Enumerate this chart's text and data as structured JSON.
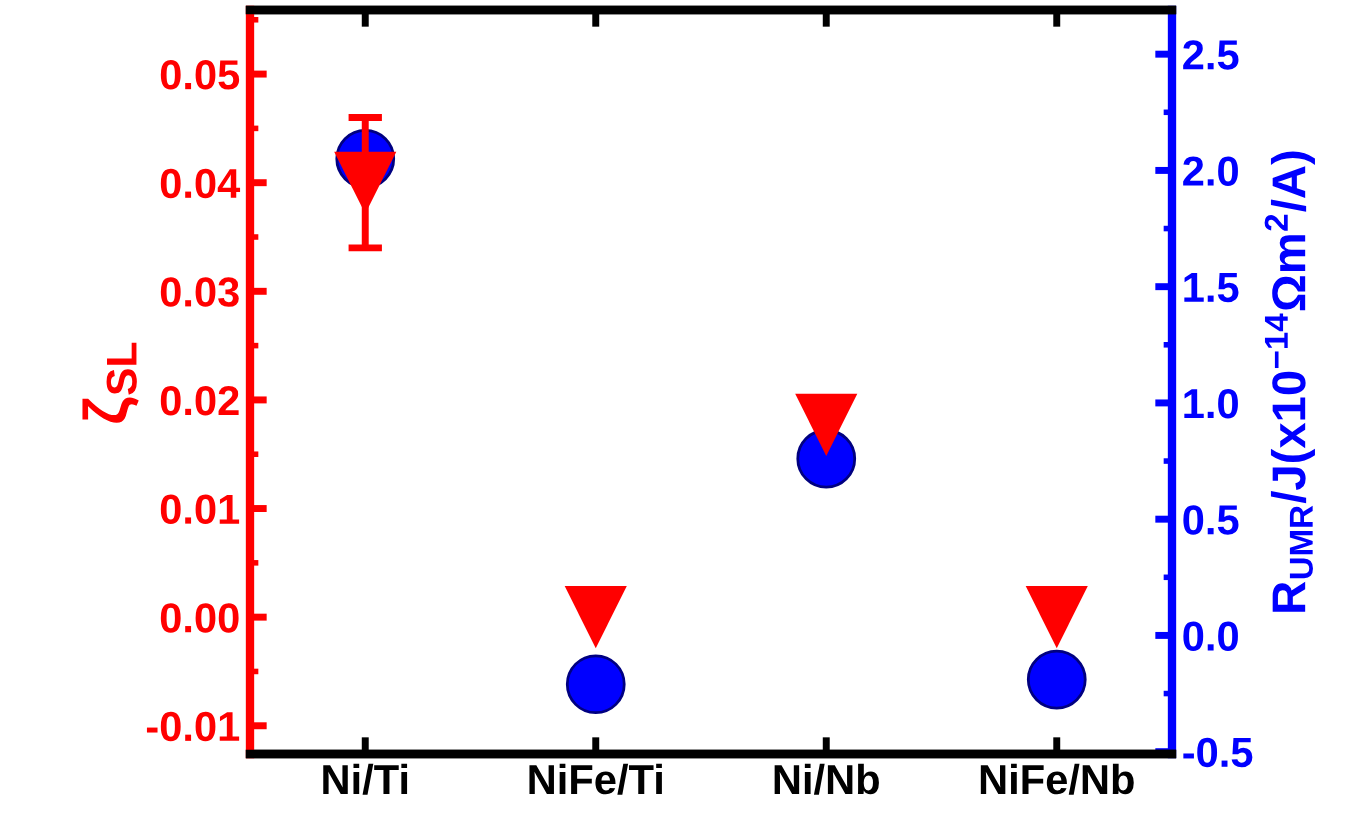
{
  "chart_data": {
    "type": "scatter",
    "ylabel": "ζ$_{SL}$",
    "y2label": "R$_{UMR}$/J(x10$^{−14}$Ωm$^{2}$/A)",
    "categories": [
      "Ni/Ti",
      "NiFe/Ti",
      "Ni/Nb",
      "NiFe/Nb"
    ],
    "series": [
      {
        "color": "#ff0000",
        "marker": "triangle",
        "values": [
          0.04,
          0.0,
          0.0177,
          0.0
        ],
        "errors": [
          [
            0.034,
            0.046
          ],
          null,
          null,
          null
        ]
      },
      {
        "color": "#0000ff",
        "marker": "circle",
        "axis": "y2",
        "values": [
          2.05,
          -0.21,
          0.76,
          -0.19
        ]
      }
    ],
    "ylim": [
      -0.0126,
      0.0559
    ],
    "yticks": [
      {
        "value": -0.01,
        "label": "-0.01"
      },
      {
        "value": 0.0,
        "label": "0.00"
      },
      {
        "value": 0.01,
        "label": "0.01"
      },
      {
        "value": 0.02,
        "label": "0.02"
      },
      {
        "value": 0.03,
        "label": "0.03"
      },
      {
        "value": 0.04,
        "label": "0.04"
      },
      {
        "value": 0.05,
        "label": "0.05"
      }
    ],
    "y2lim": [
      -0.51,
      2.69
    ],
    "y2ticks": [
      {
        "value": -0.5,
        "label": "-0.5"
      },
      {
        "value": 0.0,
        "label": "0.0"
      },
      {
        "value": 0.5,
        "label": "0.5"
      },
      {
        "value": 1.0,
        "label": "1.0"
      },
      {
        "value": 1.5,
        "label": "1.5"
      },
      {
        "value": 2.0,
        "label": "2.0"
      },
      {
        "value": 2.5,
        "label": "2.5"
      }
    ],
    "grid": false,
    "legend": false
  }
}
